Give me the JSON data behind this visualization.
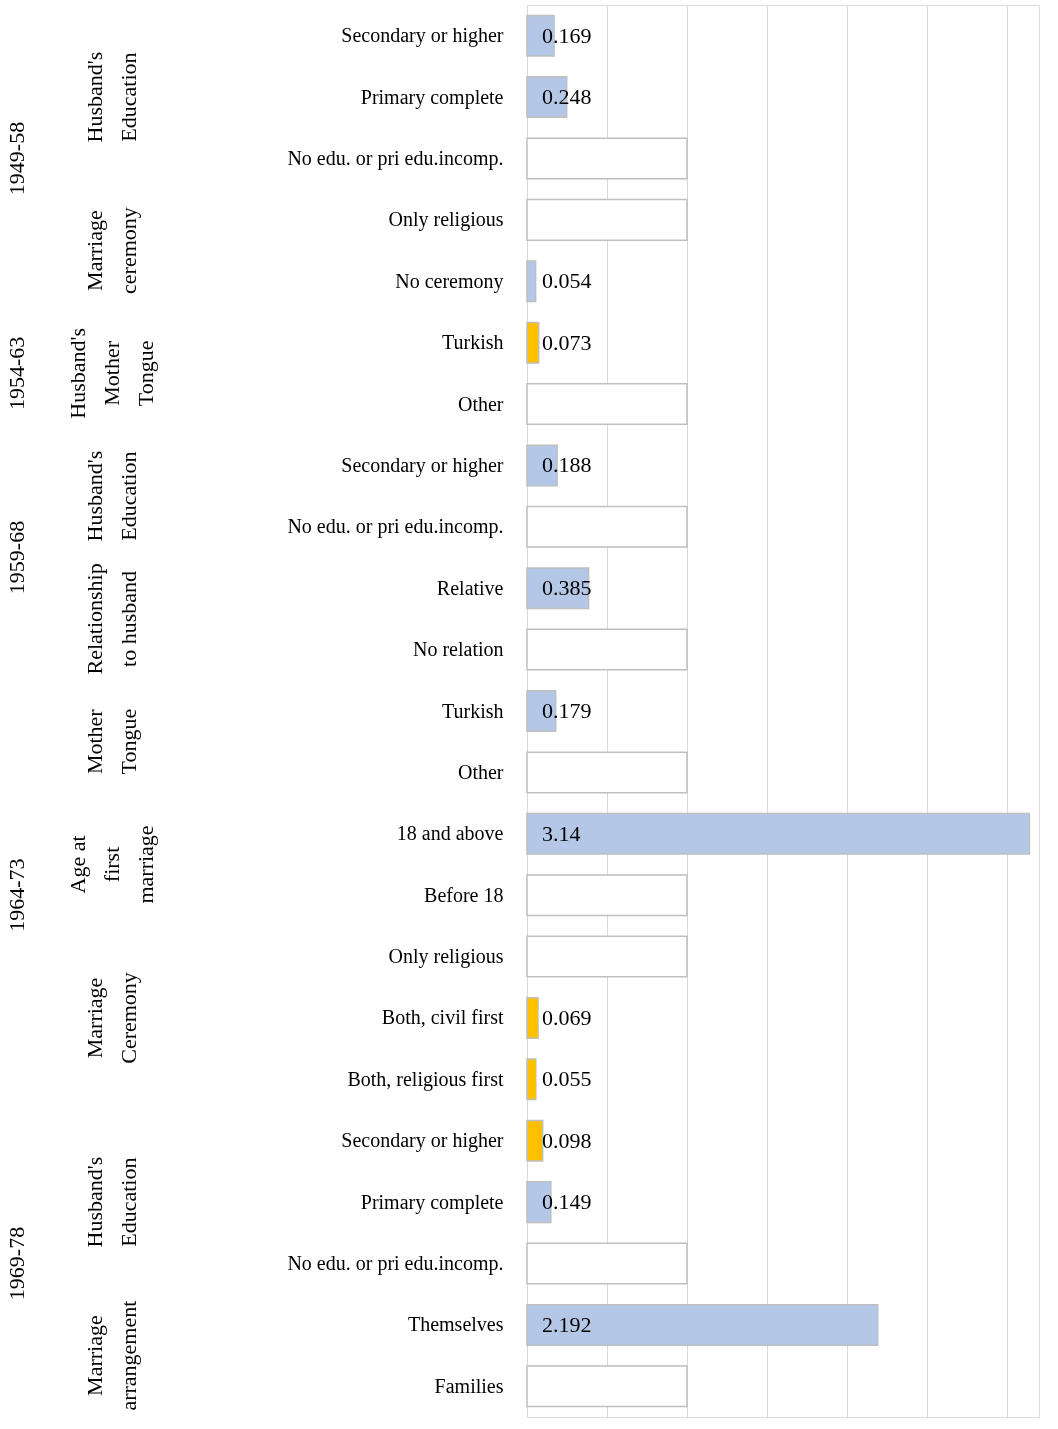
{
  "chart_data": {
    "type": "bar",
    "orientation": "horizontal",
    "categories": [
      "Secondary or higher",
      "Primary complete",
      "No edu. or pri edu.incomp.",
      "Only religious",
      "No ceremony",
      "Turkish",
      "Other",
      "Secondary or higher",
      "No edu. or pri edu.incomp.",
      "Relative",
      "No relation",
      "Turkish",
      "Other",
      "18 and above",
      "Before 18",
      "Only religious",
      "Both, civil first",
      "Both, religious first",
      "Secondary or higher",
      "Primary complete",
      "No edu. or pri edu.incomp.",
      "Themselves",
      "Families"
    ],
    "series": [
      {
        "values": [
          0.169,
          0.248,
          null,
          null,
          0.054,
          0.073,
          null,
          0.188,
          null,
          0.385,
          null,
          0.179,
          null,
          3.14,
          null,
          null,
          0.069,
          0.055,
          0.098,
          0.149,
          null,
          2.192,
          null
        ],
        "colors": [
          "#b4c7e7",
          "#b4c7e7",
          "#b4c7e7",
          "#b4c7e7",
          "#b4c7e7",
          "#ffc000",
          "#b4c7e7",
          "#b4c7e7",
          "#b4c7e7",
          "#b4c7e7",
          "#b4c7e7",
          "#b4c7e7",
          "#b4c7e7",
          "#b4c7e7",
          "#b4c7e7",
          "#b4c7e7",
          "#ffc000",
          "#ffc000",
          "#ffc000",
          "#b4c7e7",
          "#b4c7e7",
          "#b4c7e7",
          "#b4c7e7"
        ],
        "value_labels": [
          "0.169",
          "0.248",
          null,
          null,
          "0.054",
          "0.073",
          null,
          "0.188",
          null,
          "0.385",
          null,
          "0.179",
          null,
          "3.14",
          null,
          null,
          "0.069",
          "0.055",
          "0.098",
          "0.149",
          null,
          "2.192",
          null
        ]
      },
      {
        "color": "#ffffff",
        "values": [
          null,
          null,
          1,
          1,
          null,
          null,
          1,
          null,
          1,
          null,
          1,
          null,
          1,
          null,
          1,
          1,
          null,
          null,
          null,
          null,
          1,
          null,
          1
        ]
      }
    ],
    "xlim": [
      0,
      3.2
    ],
    "xticks": [
      {
        "value": 0,
        "label": null
      },
      {
        "value": 0.5,
        "label": null
      },
      {
        "value": 1,
        "label": null
      },
      {
        "value": 1.5,
        "label": null
      },
      {
        "value": 2,
        "label": null
      },
      {
        "value": 2.5,
        "label": null
      },
      {
        "value": 3,
        "label": null
      }
    ],
    "grid": "x",
    "tick_labels": "y",
    "annotations": [
      "1949-58",
      "1954-63",
      "1959-68",
      "1964-73",
      "1969-78",
      "Husband's Education",
      "Marriage ceremony",
      "Husband's Mother Tongue",
      "Husband's Education",
      "Relationship to husband",
      "Mother Tongue",
      "Age at first marriage",
      "Marriage Ceremony",
      "Husband's Education",
      "Marriage arrangement"
    ]
  }
}
